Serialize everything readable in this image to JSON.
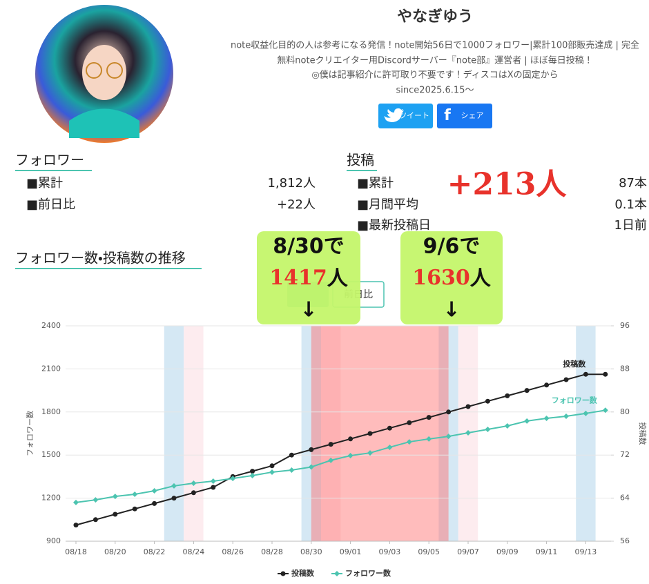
{
  "profile": {
    "name": "やなぎゆう",
    "bio": [
      "note収益化目的の人は参考になる発信！note開始56日で1000フォロワー|累計100部販売達成 | 完全",
      "無料noteクリエイター用Discordサーバー『note部』運営者 | ほぼ毎日投稿！",
      "◎僕は記事紹介に許可取り不要です！ディスコはXの固定から",
      "since2025.6.15〜"
    ],
    "buttons": [
      "ツイート",
      "シェア"
    ]
  },
  "stats": {
    "followers": {
      "heading": "フォロワー",
      "rows": [
        [
          "■累計",
          "1,812人"
        ],
        [
          "■前日比",
          "+22人"
        ]
      ]
    },
    "posts": {
      "heading": "投稿",
      "rows": [
        [
          "■累計",
          "87本"
        ],
        [
          "■月間平均",
          "0.1本"
        ],
        [
          "■最新投稿日",
          "1日前"
        ]
      ]
    },
    "highlight": "+213人"
  },
  "chart_section": {
    "title": "フォロワー数・投稿数の推移",
    "button": "前日比"
  },
  "annotations": [
    {
      "date": "8/30で",
      "count": 1417,
      "unit": "人",
      "arrow": "↓"
    },
    {
      "date": "9/6で",
      "count": 1630,
      "unit": "人",
      "arrow": "↓"
    }
  ],
  "chart_data": {
    "type": "line",
    "categories": [
      "08/18",
      null,
      "08/20",
      null,
      "08/22",
      null,
      "08/24",
      null,
      "08/26",
      null,
      "08/28",
      null,
      "08/30",
      null,
      "09/01",
      null,
      "09/03",
      null,
      "09/05",
      null,
      "09/07",
      null,
      "09/09",
      null,
      "09/11",
      null,
      "09/13",
      null
    ],
    "series": [
      {
        "name": "投稿数",
        "color": "#222222",
        "marker": "circle",
        "axis": "y2",
        "values": [
          59,
          60,
          61,
          62,
          63,
          64,
          65,
          66,
          68,
          69,
          70,
          72,
          73,
          74,
          75,
          76,
          77,
          78,
          79,
          80,
          81,
          82,
          83,
          84,
          85,
          86,
          87,
          87
        ]
      },
      {
        "name": "フォロワー数",
        "color": "#4cc4b0",
        "marker": "diamond",
        "values": [
          1170,
          1188,
          1212,
          1227,
          1251,
          1285,
          1304,
          1318,
          1337,
          1357,
          1381,
          1395,
          1417,
          1463,
          1496,
          1515,
          1554,
          1592,
          1612,
          1630,
          1655,
          1679,
          1703,
          1737,
          1756,
          1770,
          1790,
          1812
        ]
      }
    ],
    "ylabel": "フォロワー数",
    "y2label": "投稿数",
    "ylim": [
      900,
      2400
    ],
    "yticks": [
      900,
      1200,
      1500,
      1800,
      2100,
      2400
    ],
    "y2lim": [
      56,
      96
    ],
    "y2ticks": [
      56,
      64,
      72,
      80,
      88,
      96
    ],
    "grid": true,
    "legend": "bottom",
    "bands": [
      {
        "index": 5,
        "color": "#d5e8f4"
      },
      {
        "index": 6,
        "color": "#fdecef"
      },
      {
        "index": 12,
        "color": "#d5e8f4"
      },
      {
        "index": 13,
        "color": "#fdecef"
      },
      {
        "index": 19,
        "color": "#d5e8f4"
      },
      {
        "index": 20,
        "color": "#fdecef"
      },
      {
        "index": 26,
        "color": "#d5e8f4"
      }
    ],
    "highlight": {
      "from": 12,
      "to": 19,
      "color": "#ff6b6b"
    }
  }
}
